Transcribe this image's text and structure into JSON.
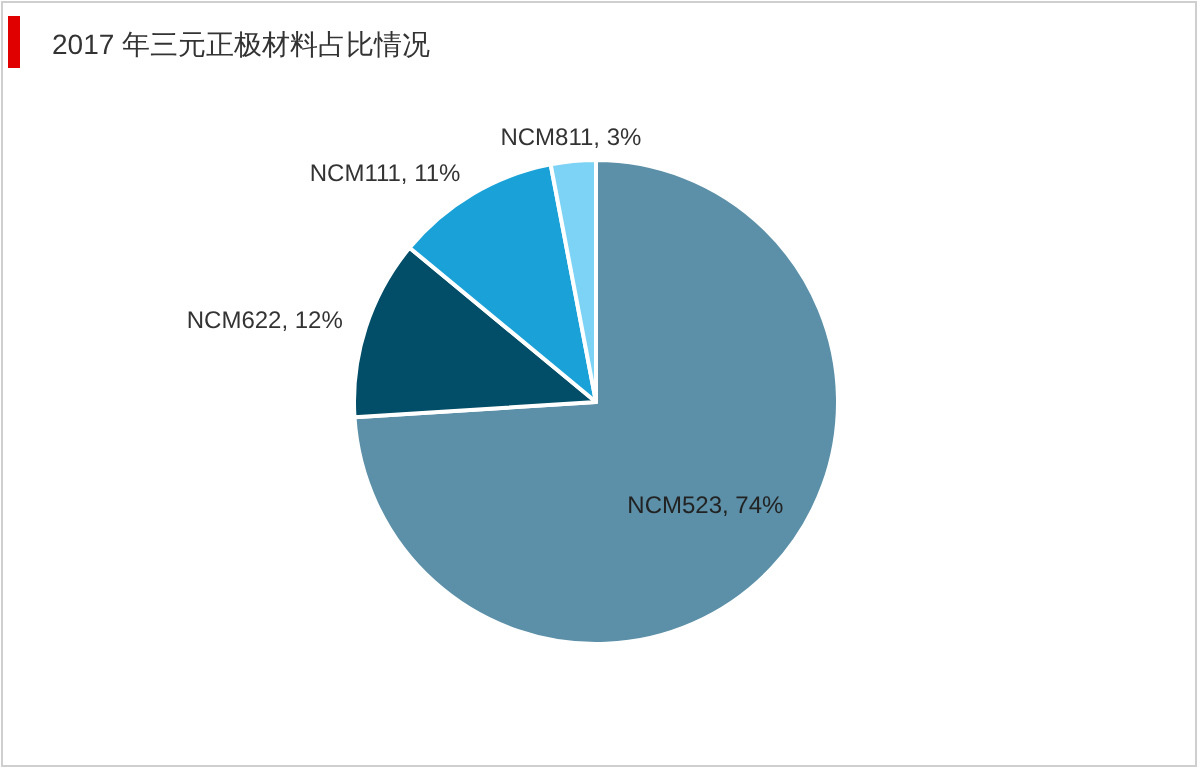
{
  "chart_data": {
    "type": "pie",
    "title": "2017 年三元正极材料占比情况",
    "categories": [
      "NCM523",
      "NCM622",
      "NCM111",
      "NCM811"
    ],
    "values": [
      74,
      12,
      11,
      3
    ],
    "value_labels": [
      "74%",
      "12%",
      "11%",
      "3%"
    ],
    "colors": [
      "#5b90a8",
      "#024d68",
      "#1aa2d8",
      "#7dd3f5"
    ]
  }
}
